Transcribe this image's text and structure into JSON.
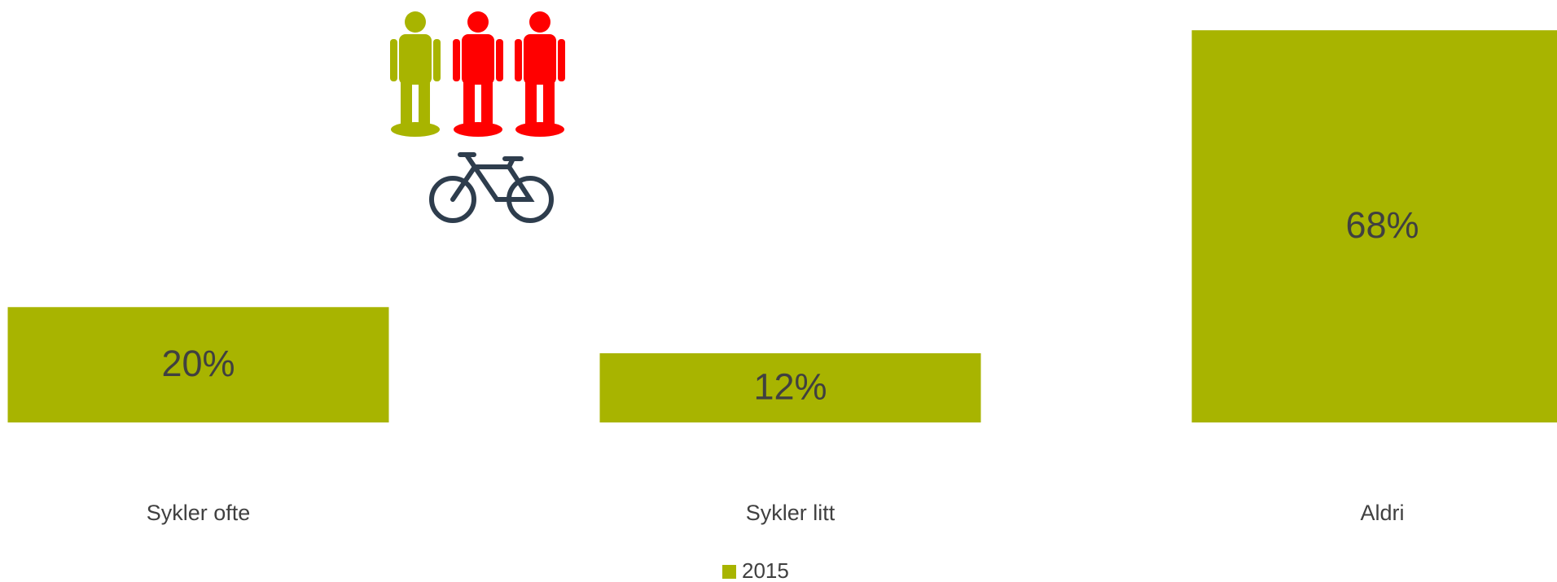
{
  "chart_data": {
    "type": "bar",
    "categories": [
      "Sykler ofte",
      "Sykler litt",
      "Aldri"
    ],
    "series": [
      {
        "name": "2015",
        "color": "#a8b400",
        "values": [
          20,
          12,
          68
        ],
        "value_labels": [
          "20%",
          "12%",
          "68%"
        ]
      }
    ],
    "ylim": [
      0,
      70
    ],
    "legend": "bottom"
  }
}
